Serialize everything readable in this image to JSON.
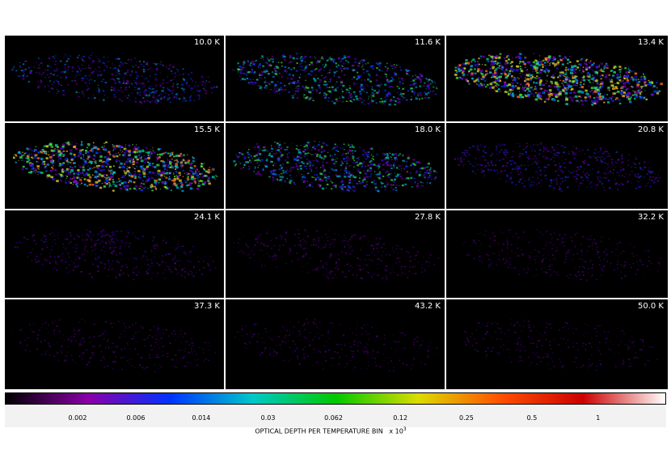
{
  "panels": [
    {
      "label": "10.0 K",
      "intensity": 0.25
    },
    {
      "label": "11.6 K",
      "intensity": 0.4
    },
    {
      "label": "13.4 K",
      "intensity": 0.62
    },
    {
      "label": "15.5 K",
      "intensity": 0.58
    },
    {
      "label": "18.0 K",
      "intensity": 0.42
    },
    {
      "label": "20.8 K",
      "intensity": 0.22
    },
    {
      "label": "24.1 K",
      "intensity": 0.12
    },
    {
      "label": "27.8 K",
      "intensity": 0.08
    },
    {
      "label": "32.2 K",
      "intensity": 0.06
    },
    {
      "label": "37.3 K",
      "intensity": 0.05
    },
    {
      "label": "43.2 K",
      "intensity": 0.04
    },
    {
      "label": "50.0 K",
      "intensity": 0.025
    }
  ],
  "colorbar": {
    "title": "OPTICAL DEPTH PER TEMPERATURE BIN",
    "multiplier": "x 10",
    "exponent": "3",
    "ticks": [
      "0.002",
      "0.006",
      "0.014",
      "0.03",
      "0.062",
      "0.12",
      "0.25",
      "0.5",
      "1"
    ],
    "tick_fractions": [
      0.11,
      0.198,
      0.297,
      0.398,
      0.497,
      0.598,
      0.698,
      0.797,
      0.897
    ],
    "colors": [
      "#000000",
      "#8a00a8",
      "#0033ff",
      "#00c8c8",
      "#00c800",
      "#dcdc00",
      "#ff5000",
      "#cc0000",
      "#ffffff"
    ]
  }
}
